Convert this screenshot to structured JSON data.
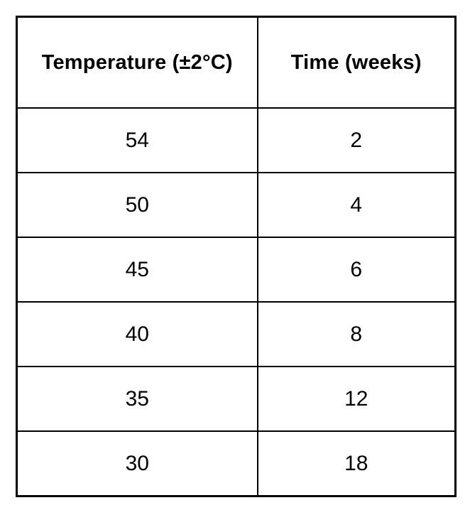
{
  "table": {
    "headers": [
      "Temperature (±2°C)",
      "Time (weeks)"
    ],
    "rows": [
      [
        "54",
        "2"
      ],
      [
        "50",
        "4"
      ],
      [
        "45",
        "6"
      ],
      [
        "40",
        "8"
      ],
      [
        "35",
        "12"
      ],
      [
        "30",
        "18"
      ]
    ]
  },
  "chart_data": {
    "type": "table",
    "title": "",
    "columns": [
      "Temperature (±2°C)",
      "Time (weeks)"
    ],
    "temperature_c": [
      54,
      50,
      45,
      40,
      35,
      30
    ],
    "temperature_tolerance_c": 2,
    "time_weeks": [
      2,
      4,
      6,
      8,
      12,
      18
    ],
    "layout": {
      "grid": "all-borders",
      "header_bold": true,
      "text_align": "center"
    }
  },
  "colors": {
    "border": "#000000",
    "text": "#000000",
    "background": "#ffffff"
  }
}
